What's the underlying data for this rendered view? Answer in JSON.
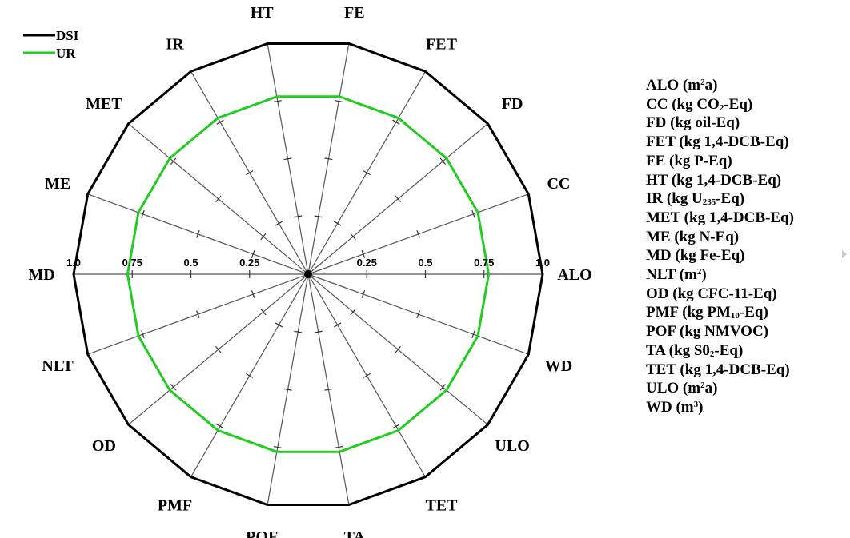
{
  "chart_data": {
    "type": "radar",
    "categories": [
      "ALO",
      "CC",
      "FD",
      "FET",
      "FE",
      "HT",
      "IR",
      "MET",
      "ME",
      "MD",
      "NLT",
      "OD",
      "PMF",
      "POF",
      "TA",
      "TET",
      "ULO",
      "WD"
    ],
    "series": [
      {
        "name": "DSI",
        "color": "#000000",
        "values": [
          1,
          1,
          1,
          1,
          1,
          1,
          1,
          1,
          1,
          1,
          1,
          1,
          1,
          1,
          1,
          1,
          1,
          1
        ]
      },
      {
        "name": "UR",
        "color": "#22cc22",
        "values": [
          0.77,
          0.77,
          0.77,
          0.77,
          0.77,
          0.77,
          0.77,
          0.77,
          0.77,
          0.77,
          0.77,
          0.77,
          0.77,
          0.77,
          0.77,
          0.77,
          0.77,
          0.77
        ]
      }
    ],
    "radial_ticks": [
      0.25,
      0.5,
      0.75,
      1.0
    ],
    "tick_labels": [
      "0.25",
      "0.5",
      "0.75",
      "1.0"
    ],
    "rlim": [
      0,
      1
    ],
    "legend_position": "top-left"
  },
  "units": [
    {
      "pre": "ALO (m",
      "sup": "2",
      "post": "a)"
    },
    {
      "pre": "CC (kg CO",
      "sub": "2",
      "post": "-Eq)"
    },
    {
      "pre": "FD (kg oil-Eq)"
    },
    {
      "pre": "FET (kg 1,4-DCB-Eq)"
    },
    {
      "pre": "FE (kg P-Eq)"
    },
    {
      "pre": "HT (kg 1,4-DCB-Eq)"
    },
    {
      "pre": "IR (kg U",
      "sub": "235",
      "post": "-Eq)"
    },
    {
      "pre": "MET (kg 1,4-DCB-Eq)"
    },
    {
      "pre": "ME (kg N-Eq)"
    },
    {
      "pre": "MD (kg Fe-Eq)"
    },
    {
      "pre": "NLT (m",
      "sup": "2",
      "post": ")"
    },
    {
      "pre": "OD (kg CFC-11-Eq)"
    },
    {
      "pre": "PMF (kg PM",
      "sub": "10",
      "post": "-Eq)"
    },
    {
      "pre": "POF (kg NMVOC)"
    },
    {
      "pre": "TA (kg S0",
      "sub": "2",
      "post": "-Eq)"
    },
    {
      "pre": "TET (kg 1,4-DCB-Eq)"
    },
    {
      "pre": "ULO (m",
      "sup": "2",
      "post": "a)"
    },
    {
      "pre": "WD (m",
      "sup": "3",
      "post": ")"
    }
  ]
}
